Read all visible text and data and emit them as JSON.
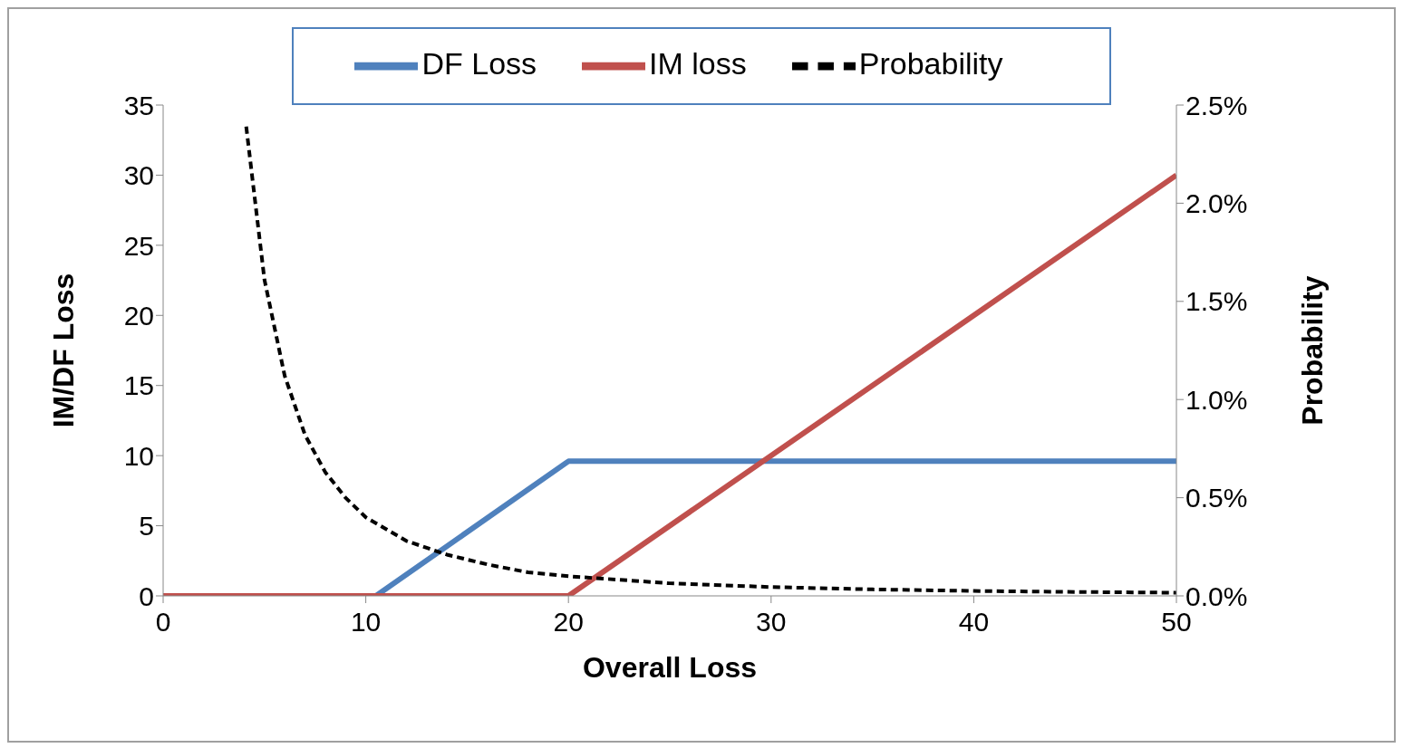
{
  "chart_data": {
    "type": "line",
    "xlabel": "Overall Loss",
    "ylabel": "IM/DF Loss",
    "y2label": "Probability",
    "xlim": [
      0,
      50
    ],
    "xticks": [
      0,
      10,
      20,
      30,
      40,
      50
    ],
    "ylim": [
      0,
      35
    ],
    "yticks": [
      0,
      5,
      10,
      15,
      20,
      25,
      30,
      35
    ],
    "y2lim": [
      0,
      2.5
    ],
    "y2ticks": [
      {
        "value": 0,
        "label": "0.0%"
      },
      {
        "value": 0.5,
        "label": "0.5%"
      },
      {
        "value": 1,
        "label": "1.0%"
      },
      {
        "value": 1.5,
        "label": "1.5%"
      },
      {
        "value": 2,
        "label": "2.0%"
      },
      {
        "value": 2.5,
        "label": "2.5%"
      }
    ],
    "legend": "top",
    "marker": "none",
    "series": [
      {
        "name": "DF Loss",
        "color": "#4f81bd",
        "x": [
          0,
          10.5,
          20,
          50
        ],
        "values": [
          0,
          0,
          9.6,
          9.6
        ]
      },
      {
        "name": "IM loss",
        "color": "#c0504d",
        "x": [
          0,
          20,
          50
        ],
        "values": [
          0,
          0,
          30
        ]
      },
      {
        "name": "Probability",
        "color": "#000000",
        "axis": "y2",
        "line_style": "dashed",
        "x": [
          4.1,
          5,
          6,
          7,
          8,
          9,
          10,
          12,
          14,
          16,
          18,
          20,
          25,
          30,
          35,
          40,
          45,
          50
        ],
        "values": [
          2.39,
          1.61,
          1.12,
          0.82,
          0.63,
          0.5,
          0.4,
          0.28,
          0.21,
          0.16,
          0.12,
          0.1,
          0.064,
          0.045,
          0.033,
          0.025,
          0.02,
          0.016
        ]
      }
    ]
  }
}
